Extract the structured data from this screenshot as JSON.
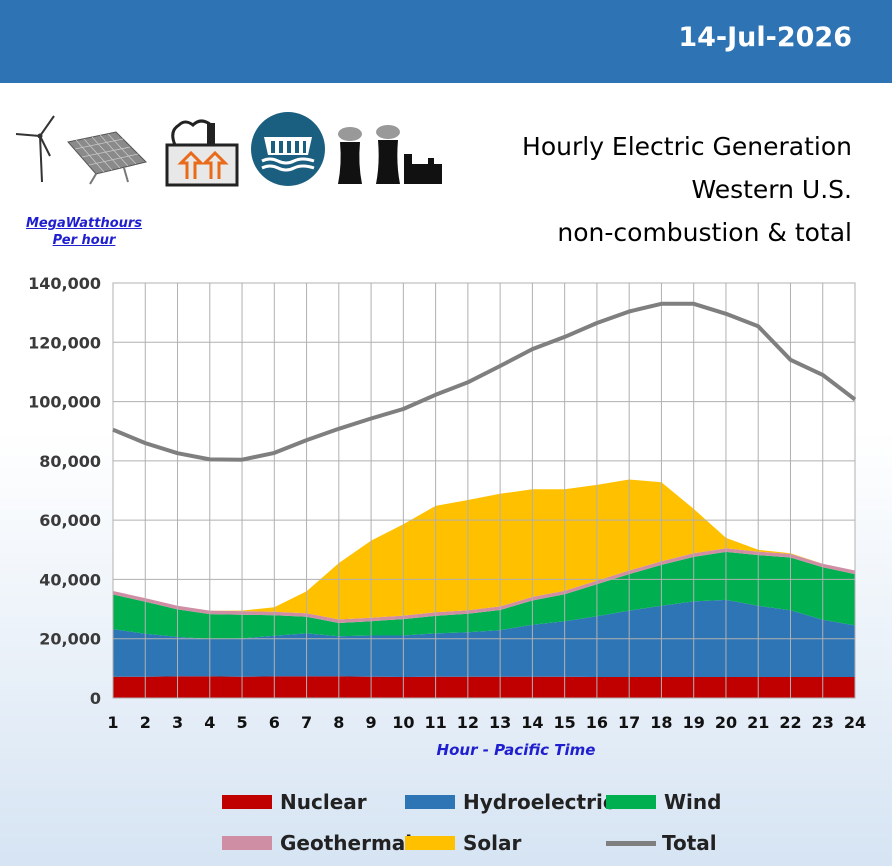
{
  "header": {
    "date": "14-Jul-2026"
  },
  "title": {
    "line1": "Hourly Electric Generation",
    "line2": "Western U.S.",
    "line3": "non-combustion & total"
  },
  "units": {
    "line1": "MegaWatthours",
    "line2": "Per hour"
  },
  "icons": [
    "wind-turbine-icon",
    "solar-panel-icon",
    "geothermal-plant-icon",
    "hydro-dam-icon",
    "nuclear-plant-icon"
  ],
  "chart_data": {
    "type": "area",
    "xlabel": "Hour - Pacific Time",
    "x": [
      1,
      2,
      3,
      4,
      5,
      6,
      7,
      8,
      9,
      10,
      11,
      12,
      13,
      14,
      15,
      16,
      17,
      18,
      19,
      20,
      21,
      22,
      23,
      24
    ],
    "ylim": [
      0,
      140000
    ],
    "yticks": [
      "0",
      "20,000",
      "40,000",
      "60,000",
      "80,000",
      "100,000",
      "120,000",
      "140,000"
    ],
    "grid": true,
    "legend_position": "bottom",
    "stacked_series": [
      {
        "name": "Nuclear",
        "color": "#c00000",
        "values": [
          7200,
          7200,
          7300,
          7300,
          7200,
          7300,
          7300,
          7300,
          7200,
          7100,
          7200,
          7200,
          7200,
          7200,
          7200,
          7100,
          7100,
          7100,
          7100,
          7100,
          7100,
          7100,
          7100,
          7100
        ]
      },
      {
        "name": "Hydroelectric",
        "color": "#2e75b6",
        "values": [
          16000,
          14500,
          13300,
          12600,
          12900,
          13700,
          14500,
          13500,
          13900,
          14000,
          14600,
          15000,
          15700,
          17500,
          18700,
          20500,
          22400,
          24000,
          25500,
          26000,
          24000,
          22500,
          19300,
          17400
        ]
      },
      {
        "name": "Wind",
        "color": "#00b050",
        "values": [
          11700,
          10800,
          9300,
          8400,
          8000,
          6900,
          5600,
          4500,
          4800,
          5500,
          5900,
          6200,
          6800,
          8200,
          9100,
          10800,
          12300,
          13800,
          15000,
          16200,
          17100,
          17800,
          17700,
          17300
        ]
      },
      {
        "name": "Geothermal",
        "color": "#d08ea4",
        "values": [
          1200,
          1200,
          1200,
          1200,
          1200,
          1200,
          1200,
          1200,
          1200,
          1200,
          1200,
          1200,
          1200,
          1200,
          1200,
          1200,
          1200,
          1200,
          1200,
          1200,
          1200,
          1200,
          1200,
          1200
        ]
      },
      {
        "name": "Solar",
        "color": "#ffc000",
        "values": [
          0,
          0,
          0,
          0,
          200,
          1500,
          7400,
          19000,
          26000,
          30800,
          35900,
          37200,
          38000,
          36300,
          34200,
          32300,
          30700,
          26700,
          15000,
          3500,
          600,
          200,
          0,
          0
        ]
      }
    ],
    "line_series": [
      {
        "name": "Total",
        "color": "#7f7f7f",
        "values": [
          90500,
          86000,
          82600,
          80500,
          80400,
          82700,
          87000,
          90800,
          94300,
          97500,
          102300,
          106500,
          112000,
          117700,
          121800,
          126500,
          130400,
          133000,
          133000,
          129600,
          125400,
          114100,
          109000,
          100700
        ]
      }
    ]
  },
  "legend": {
    "nuclear": "Nuclear",
    "hydro": "Hydroelectric",
    "wind": "Wind",
    "geothermal": "Geothermal",
    "solar": "Solar",
    "total": "Total"
  }
}
